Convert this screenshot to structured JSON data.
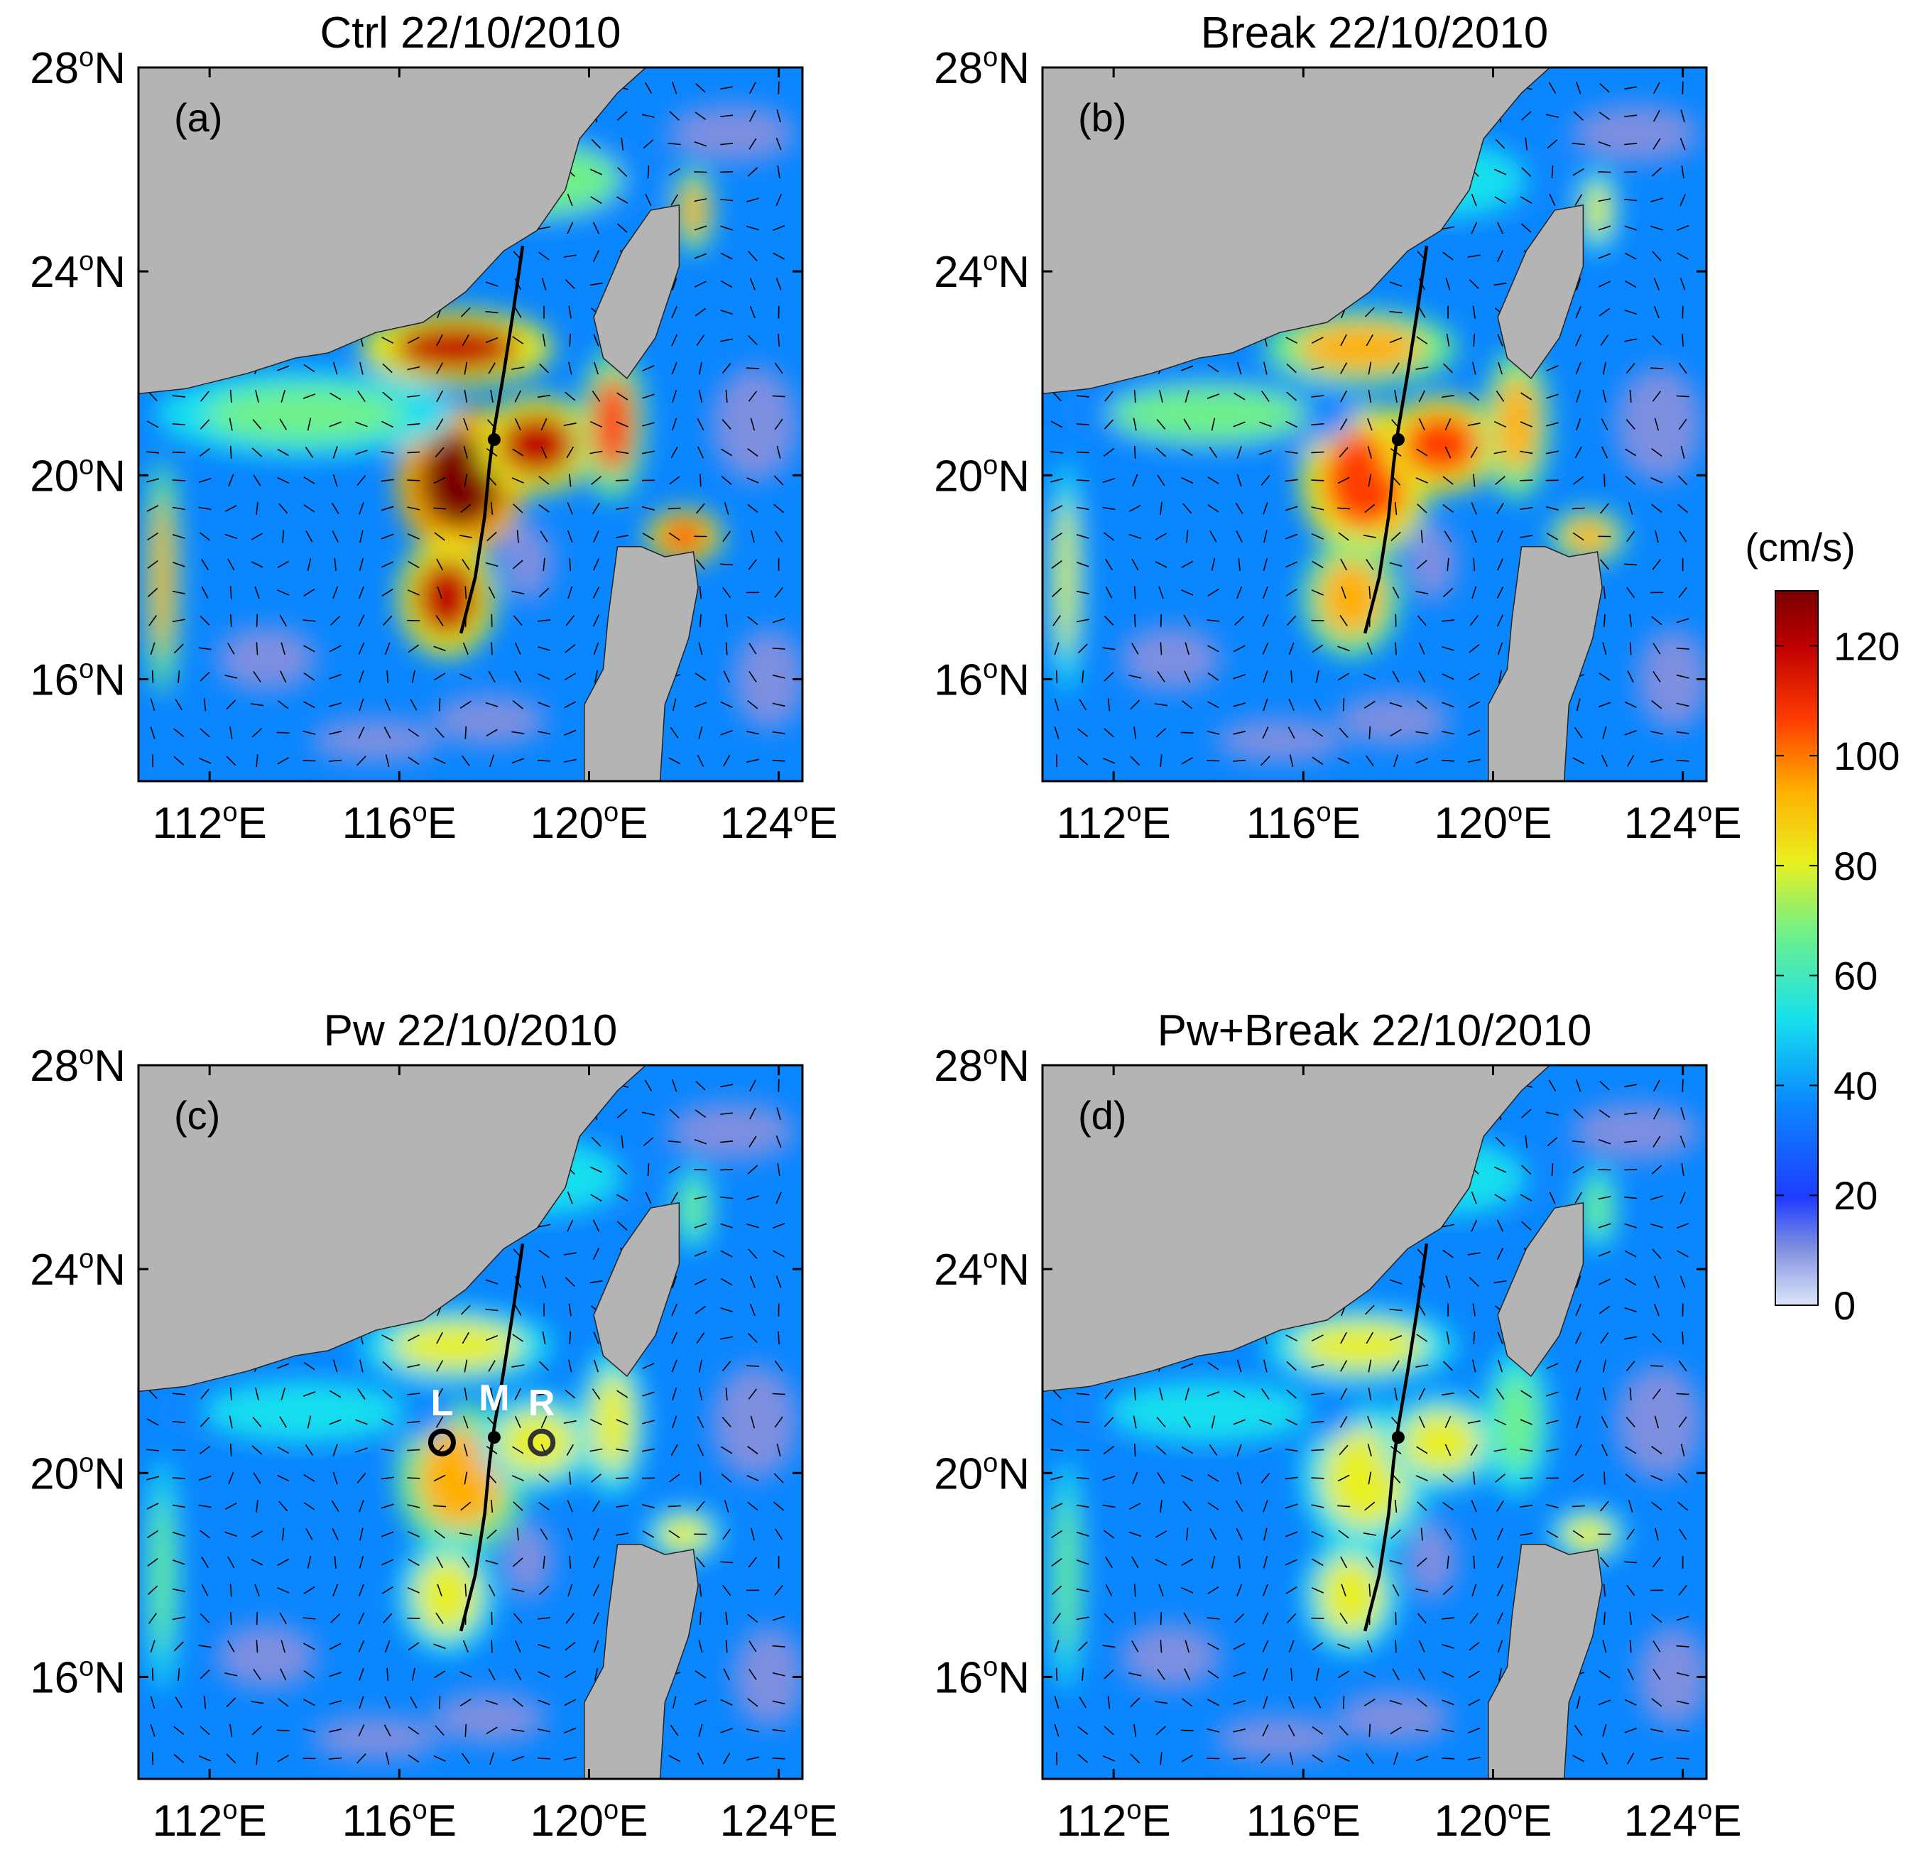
{
  "panels": [
    {
      "title": "Ctrl 22/10/2010",
      "tag": "(a)",
      "intensity": 1.0
    },
    {
      "title": "Break 22/10/2010",
      "tag": "(b)",
      "intensity": 0.8
    },
    {
      "title": "Pw 22/10/2010",
      "tag": "(c)",
      "intensity": 0.55,
      "stations": [
        "L",
        "M",
        "R"
      ]
    },
    {
      "title": "Pw+Break 22/10/2010",
      "tag": "(d)",
      "intensity": 0.5
    }
  ],
  "axes": {
    "lon_ticks": [
      112,
      116,
      120,
      124
    ],
    "lat_ticks": [
      16,
      20,
      24,
      28
    ],
    "lon_label": "E",
    "lat_label": "N",
    "degree_mark": "o",
    "lon_range": [
      110.5,
      124.5
    ],
    "lat_range": [
      14,
      28
    ]
  },
  "colorbar": {
    "unit": "(cm/s)",
    "ticks": [
      0,
      20,
      40,
      60,
      80,
      100,
      120
    ],
    "range": [
      0,
      130
    ],
    "colors": [
      "#dde6fa",
      "#7f8fe0",
      "#1f3cff",
      "#0a86ff",
      "#16e0ee",
      "#6ef08a",
      "#e8f020",
      "#ffb000",
      "#ff3c00",
      "#c00000",
      "#7a0000"
    ]
  },
  "land_color": "#b4b4b4",
  "track": {
    "lon": [
      117.3,
      117.6,
      117.8,
      117.9,
      118.0,
      118.2,
      118.4,
      118.6
    ],
    "lat": [
      16.9,
      18.0,
      19.2,
      20.2,
      20.9,
      22.0,
      23.2,
      24.5
    ]
  },
  "station_positions": {
    "L": [
      116.9,
      20.6
    ],
    "M": [
      118.0,
      20.7
    ],
    "R": [
      119.0,
      20.6
    ]
  }
}
